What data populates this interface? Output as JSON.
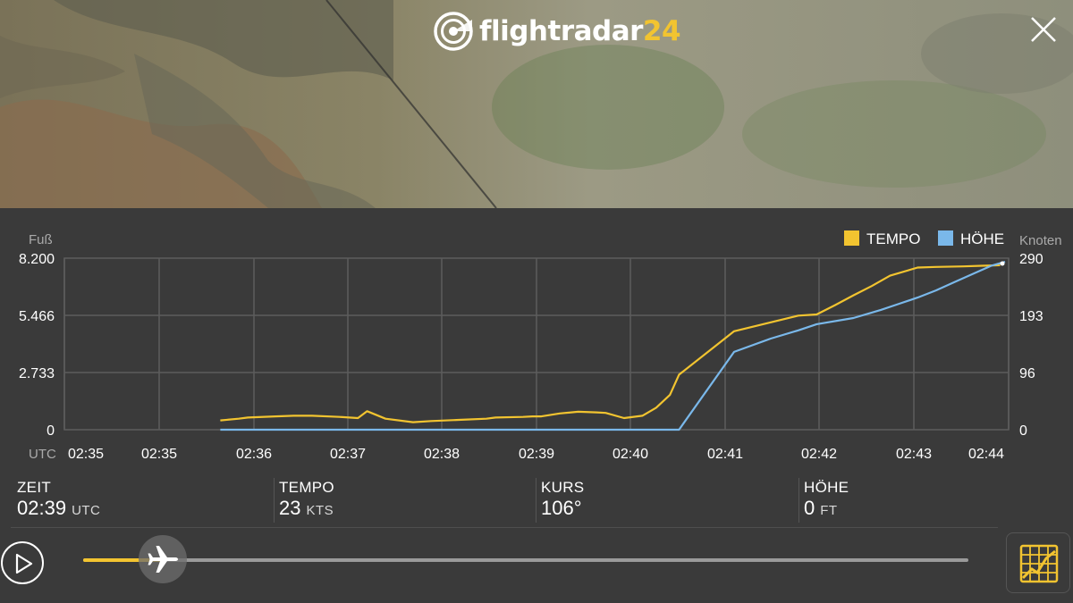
{
  "app": {
    "logo_word": "flightradar",
    "logo_num": "24"
  },
  "colors": {
    "speed": "#f2c430",
    "altitude": "#7ab8ea",
    "accent": "#f2c430"
  },
  "icons": {
    "logo": "radar-logo-icon",
    "close": "close-icon",
    "play": "play-icon",
    "handle": "airplane-icon",
    "graph": "graph-toggle-icon"
  },
  "chart_data": {
    "type": "line",
    "title": "",
    "y_left_label": "Fuß",
    "y_right_label": "Knoten",
    "y_left_ticks": [
      "8.200",
      "5.466",
      "2.733",
      "0"
    ],
    "y_right_ticks": [
      "290",
      "193",
      "96",
      "0"
    ],
    "y_left_range": [
      0,
      8200
    ],
    "y_right_range": [
      0,
      290
    ],
    "x_axis_prefix": "UTC",
    "x_tick_labels": [
      "02:35",
      "02:35",
      "02:36",
      "02:37",
      "02:38",
      "02:39",
      "02:40",
      "02:41",
      "02:42",
      "02:43",
      "02:44"
    ],
    "x_range_min": [
      0,
      10.3
    ],
    "grid": true,
    "legend_position": "top-right",
    "series": [
      {
        "name": "TEMPO",
        "axis": "right",
        "color": "#f2c430",
        "x_min": [
          1.7,
          1.9,
          2.0,
          2.3,
          2.5,
          2.7,
          3.0,
          3.2,
          3.3,
          3.5,
          3.8,
          4.0,
          4.3,
          4.6,
          4.7,
          5.0,
          5.1,
          5.2,
          5.4,
          5.6,
          5.8,
          5.9,
          6.1,
          6.3,
          6.45,
          6.6,
          6.7,
          7.3,
          8.0,
          8.2,
          8.4,
          8.6,
          8.8,
          9.0,
          9.3,
          9.5,
          9.8,
          10.0,
          10.2
        ],
        "values": [
          16,
          19,
          21,
          23,
          24,
          24,
          22,
          20,
          32,
          19,
          13,
          15,
          17,
          19,
          21,
          22,
          23,
          23,
          28,
          31,
          30,
          29,
          20,
          24,
          38,
          60,
          95,
          170,
          197,
          199,
          215,
          232,
          248,
          266,
          280,
          281,
          282,
          283,
          284
        ]
      },
      {
        "name": "HÖHE",
        "axis": "left",
        "color": "#7ab8ea",
        "x_min": [
          1.7,
          2.5,
          3.5,
          4.5,
          5.5,
          6.0,
          6.3,
          6.6,
          6.7,
          7.3,
          7.7,
          8.0,
          8.2,
          8.6,
          8.9,
          9.1,
          9.3,
          9.5,
          9.7,
          9.9,
          10.1,
          10.3
        ],
        "values": [
          0,
          0,
          0,
          0,
          0,
          0,
          0,
          0,
          0,
          3800,
          4450,
          4850,
          5150,
          5450,
          5850,
          6150,
          6450,
          6800,
          7200,
          7600,
          8000,
          8200
        ]
      }
    ]
  },
  "stats": [
    {
      "label": "ZEIT",
      "value": "02:39",
      "unit": "UTC"
    },
    {
      "label": "TEMPO",
      "value": "23",
      "unit": "KTS"
    },
    {
      "label": "KURS",
      "value": "106°",
      "unit": ""
    },
    {
      "label": "HÖHE",
      "value": "0",
      "unit": "FT"
    }
  ],
  "playback": {
    "progress": 0.09
  }
}
